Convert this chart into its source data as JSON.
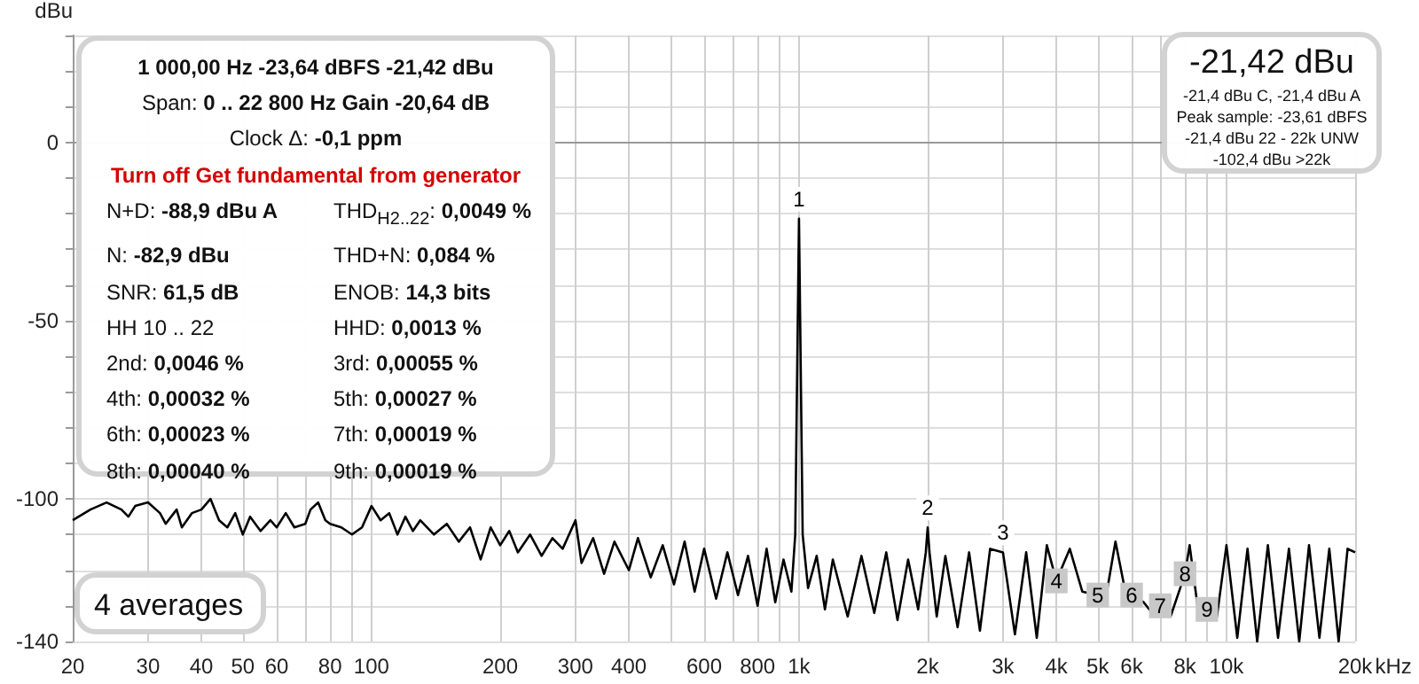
{
  "chart_data": {
    "type": "line",
    "ylabel": "dBu",
    "xlim": [
      20,
      20000
    ],
    "log": "x",
    "xticks": [
      20,
      30,
      40,
      50,
      60,
      {
        "value": 70,
        "label": null
      },
      80,
      {
        "value": 90,
        "label": null
      },
      100,
      200,
      300,
      400,
      {
        "value": 500,
        "label": null
      },
      600,
      {
        "value": 700,
        "label": null
      },
      800,
      {
        "value": 900,
        "label": null
      },
      {
        "value": 1000,
        "label": "1k"
      },
      {
        "value": 2000,
        "label": "2k"
      },
      {
        "value": 3000,
        "label": "3k"
      },
      {
        "value": 4000,
        "label": "4k"
      },
      {
        "value": 5000,
        "label": "5k"
      },
      {
        "value": 6000,
        "label": "6k"
      },
      {
        "value": 7000,
        "label": null
      },
      {
        "value": 8000,
        "label": "8k"
      },
      {
        "value": 9000,
        "label": null
      },
      {
        "value": 10000,
        "label": "10k"
      },
      {
        "value": 20000,
        "label": "20k"
      }
    ],
    "xlabel": "kHz",
    "ylim": [
      -140,
      30
    ],
    "yticks": [
      -140,
      {
        "value": -130,
        "label": null
      },
      {
        "value": -120,
        "label": null
      },
      {
        "value": -110,
        "label": null
      },
      -100,
      {
        "value": -90,
        "label": null
      },
      {
        "value": -80,
        "label": null
      },
      {
        "value": -70,
        "label": null
      },
      {
        "value": -60,
        "label": null
      },
      -50,
      {
        "value": -40,
        "label": null
      },
      {
        "value": -30,
        "label": null
      },
      {
        "value": -20,
        "label": null
      },
      {
        "value": -10,
        "label": null
      },
      0,
      {
        "value": 10,
        "label": null
      },
      {
        "value": 20,
        "label": null
      },
      {
        "value": 30,
        "label": null
      }
    ],
    "grid": true,
    "series": [
      {
        "color": "#000000",
        "x": [
          20,
          22,
          24,
          26,
          27,
          28,
          30,
          32,
          33,
          35,
          36,
          38,
          40,
          42,
          44,
          46,
          48,
          50,
          52,
          55,
          58,
          60,
          63,
          66,
          70,
          72,
          75,
          78,
          80,
          85,
          90,
          95,
          100,
          105,
          110,
          115,
          120,
          125,
          130,
          140,
          150,
          160,
          170,
          180,
          190,
          200,
          210,
          220,
          235,
          250,
          265,
          280,
          300,
          310,
          330,
          350,
          370,
          400,
          420,
          450,
          480,
          510,
          540,
          570,
          600,
          640,
          680,
          720,
          760,
          800,
          840,
          880,
          920,
          960,
          980,
          1000,
          1020,
          1050,
          1100,
          1150,
          1200,
          1300,
          1400,
          1500,
          1600,
          1700,
          1800,
          1900,
          1980,
          2000,
          2020,
          2100,
          2200,
          2350,
          2500,
          2650,
          2800,
          3000,
          3200,
          3400,
          3600,
          3800,
          4000,
          4300,
          4600,
          5000,
          5200,
          5500,
          5800,
          6000,
          6400,
          6700,
          7000,
          7400,
          8000,
          8200,
          8600,
          9000,
          9500,
          10000,
          10600,
          11200,
          11800,
          12500,
          13200,
          14000,
          14800,
          15600,
          16500,
          17400,
          18300,
          19200,
          20000
        ],
        "values": [
          -106,
          -103,
          -101,
          -103,
          -105,
          -102,
          -101,
          -104,
          -107,
          -103,
          -108,
          -104,
          -103,
          -100,
          -106,
          -108,
          -104,
          -110,
          -105,
          -109,
          -106,
          -108,
          -104,
          -108,
          -107,
          -103,
          -101,
          -106,
          -107,
          -108,
          -110,
          -108,
          -102,
          -106,
          -104,
          -110,
          -105,
          -109,
          -106,
          -110,
          -107,
          -112,
          -108,
          -117,
          -108,
          -113,
          -109,
          -115,
          -110,
          -116,
          -111,
          -114,
          -106,
          -118,
          -111,
          -121,
          -112,
          -120,
          -111,
          -122,
          -113,
          -124,
          -112,
          -126,
          -114,
          -128,
          -115,
          -127,
          -116,
          -130,
          -114,
          -129,
          -117,
          -126,
          -110,
          -21.42,
          -110,
          -125,
          -116,
          -131,
          -117,
          -133,
          -116,
          -132,
          -115,
          -134,
          -117,
          -131,
          -115,
          -108,
          -115,
          -133,
          -116,
          -136,
          -115,
          -137,
          -114,
          -115,
          -138,
          -115,
          -139,
          -113,
          -123,
          -114,
          -126,
          -127,
          -129,
          -112,
          -126,
          -127,
          -129,
          -132,
          -130,
          -133,
          -121,
          -113,
          -132,
          -131,
          -133,
          -113,
          -139,
          -114,
          -140,
          -113,
          -139,
          -114,
          -140,
          -113,
          -139,
          -114,
          -140,
          -114,
          -115
        ]
      }
    ],
    "annotations": [
      "1 000,00 Hz  -23,64 dBFS  -21,42 dBu",
      "Span: 0 .. 22 800 Hz   Gain -20,64 dB",
      "Clock Δ: -0,1 ppm",
      "Turn off Get fundamental from generator",
      "N+D: -88,9 dBu A",
      "THD$_{H2..22}$: 0,0049 %",
      "N: -82,9 dBu",
      "THD+N: 0,084 %",
      "SNR: 61,5 dB",
      "ENOB: 14,3 bits",
      "HH 10 .. 22",
      "HHD: 0,0013 %",
      "2nd: 0,0046 %",
      "3rd: 0,00055 %",
      "4th: 0,00032 %",
      "5th: 0,00027 %",
      "6th: 0,00023 %",
      "7th: 0,00019 %",
      "8th: 0,00040 %",
      "9th: 0,00019 %",
      "-21,42 dBu",
      "-21,4 dBu C, -21,4 dBu A",
      "Peak sample: -23,61 dBFS",
      "-21,4 dBu 22 - 22k UNW",
      "-102,4 dBu >22k",
      "4 averages",
      {
        "text": "1",
        "x": 1000,
        "y": -21.42
      },
      {
        "text": "2",
        "x": 2000,
        "y": -108
      },
      {
        "text": "3",
        "x": 3000,
        "y": -115
      },
      {
        "text": "4",
        "x": 4000,
        "y": -123
      },
      {
        "text": "5",
        "x": 5000,
        "y": -127
      },
      {
        "text": "6",
        "x": 6000,
        "y": -127
      },
      {
        "text": "7",
        "x": 7000,
        "y": -130
      },
      {
        "text": "8",
        "x": 8000,
        "y": -121
      },
      {
        "text": "9",
        "x": 9000,
        "y": -131
      }
    ]
  }
}
